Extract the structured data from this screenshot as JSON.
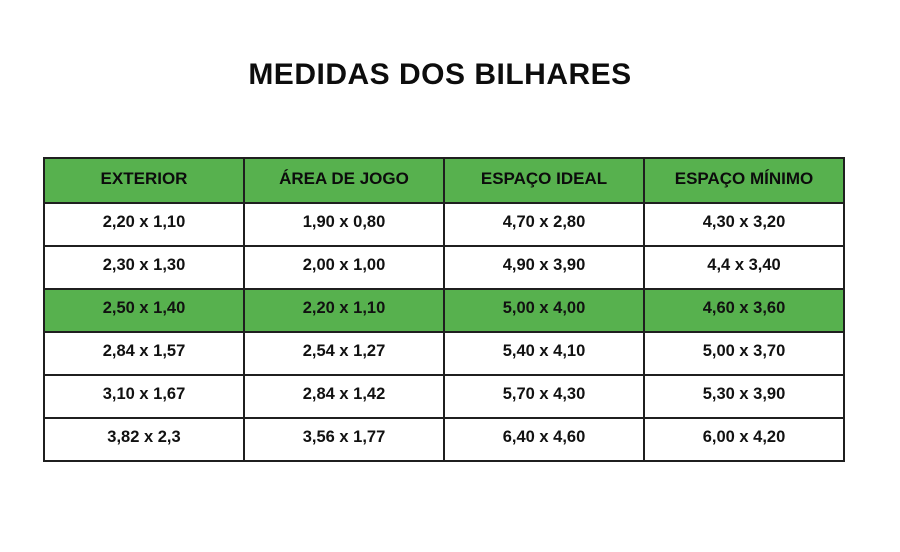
{
  "title": "MEDIDAS DOS BILHARES",
  "colors": {
    "header_green": "#57b14e",
    "highlight_green": "#57b14e",
    "border": "#1f1f1f",
    "text": "#111111"
  },
  "table": {
    "columns": [
      "EXTERIOR",
      "ÁREA DE JOGO",
      "ESPAÇO IDEAL",
      "ESPAÇO MÍNIMO"
    ],
    "rows": [
      [
        "2,20 x 1,10",
        "1,90 x 0,80",
        "4,70 x 2,80",
        "4,30 x 3,20"
      ],
      [
        "2,30 x 1,30",
        "2,00 x 1,00",
        "4,90 x 3,90",
        "4,4 x 3,40"
      ],
      [
        "2,50 x 1,40",
        "2,20 x 1,10",
        "5,00 x 4,00",
        "4,60 x 3,60"
      ],
      [
        "2,84 x 1,57",
        "2,54 x 1,27",
        "5,40 x 4,10",
        "5,00 x 3,70"
      ],
      [
        "3,10 x 1,67",
        "2,84 x 1,42",
        "5,70 x 4,30",
        "5,30 x 3,90"
      ],
      [
        "3,82 x 2,3",
        "3,56 x 1,77",
        "6,40 x 4,60",
        "6,00 x 4,20"
      ]
    ],
    "highlighted_row_index": 2
  }
}
